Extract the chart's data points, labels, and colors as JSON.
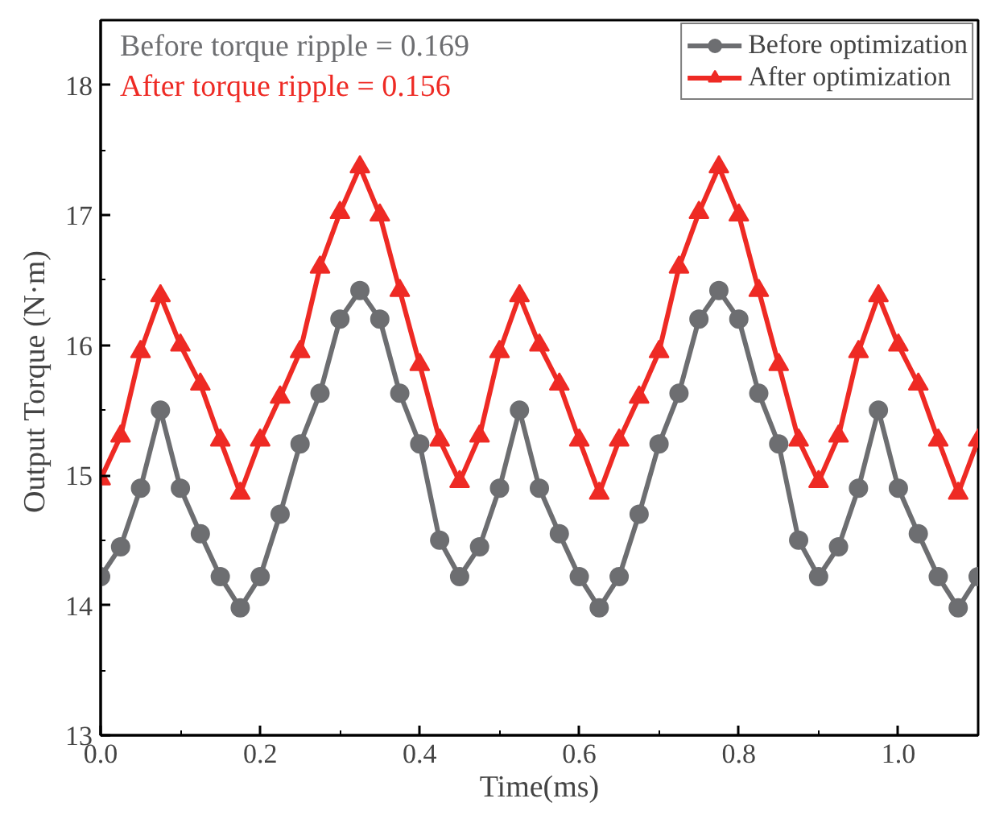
{
  "chart_data": {
    "type": "line",
    "xlabel": "Time(ms)",
    "ylabel": "Output Torque  (N·m)",
    "annotations": [
      "Before torque ripple = 0.169",
      "After   torque ripple = 0.156"
    ],
    "x": [
      0,
      0.025,
      0.05,
      0.075,
      0.1,
      0.125,
      0.15,
      0.175,
      0.2,
      0.225,
      0.25,
      0.275,
      0.3,
      0.325,
      0.35,
      0.375,
      0.4,
      0.425,
      0.45,
      0.475,
      0.5,
      0.525,
      0.55,
      0.575,
      0.6,
      0.625,
      0.65,
      0.675,
      0.7,
      0.725,
      0.75,
      0.775,
      0.8,
      0.825,
      0.85,
      0.875,
      0.9,
      0.925,
      0.95,
      0.975,
      1.0,
      1.025,
      1.05,
      1.075,
      1.1
    ],
    "series": [
      {
        "name": "Before optimization",
        "color": "#6d6e71",
        "marker": "circle",
        "values": [
          14.22,
          14.45,
          14.9,
          15.5,
          14.9,
          14.55,
          14.22,
          13.98,
          14.22,
          14.7,
          15.24,
          15.63,
          16.2,
          16.42,
          16.2,
          15.63,
          15.24,
          14.5,
          14.22,
          14.45,
          14.9,
          15.5,
          14.9,
          14.55,
          14.22,
          13.98,
          14.22,
          14.7,
          15.24,
          15.63,
          16.2,
          16.42,
          16.2,
          15.63,
          15.24,
          14.5,
          14.22,
          14.45,
          14.9,
          15.5,
          14.9,
          14.55,
          14.22,
          13.98,
          14.22
        ]
      },
      {
        "name": "After optimization",
        "color": "#ee2a24",
        "marker": "triangle",
        "values": [
          14.97,
          15.3,
          15.95,
          16.38,
          16.0,
          15.7,
          15.27,
          14.86,
          15.27,
          15.6,
          15.95,
          16.6,
          17.02,
          17.37,
          17.0,
          16.42,
          15.85,
          15.27,
          14.95,
          15.3,
          15.95,
          16.38,
          16.0,
          15.7,
          15.27,
          14.86,
          15.27,
          15.6,
          15.95,
          16.6,
          17.02,
          17.37,
          17.0,
          16.42,
          15.85,
          15.27,
          14.95,
          15.3,
          15.95,
          16.38,
          16.0,
          15.7,
          15.27,
          14.86,
          15.27
        ]
      }
    ],
    "xlim": [
      0,
      1.1
    ],
    "ylim": [
      13,
      18.5
    ],
    "xticks": [
      {
        "value": 0,
        "label": "0.0"
      },
      0.2,
      0.4,
      0.6,
      0.8,
      {
        "value": 1,
        "label": "1.0"
      }
    ],
    "yticks": [
      13,
      14,
      15,
      16,
      17,
      18
    ],
    "grid": false,
    "legend": "top right",
    "line_style": "solid"
  }
}
